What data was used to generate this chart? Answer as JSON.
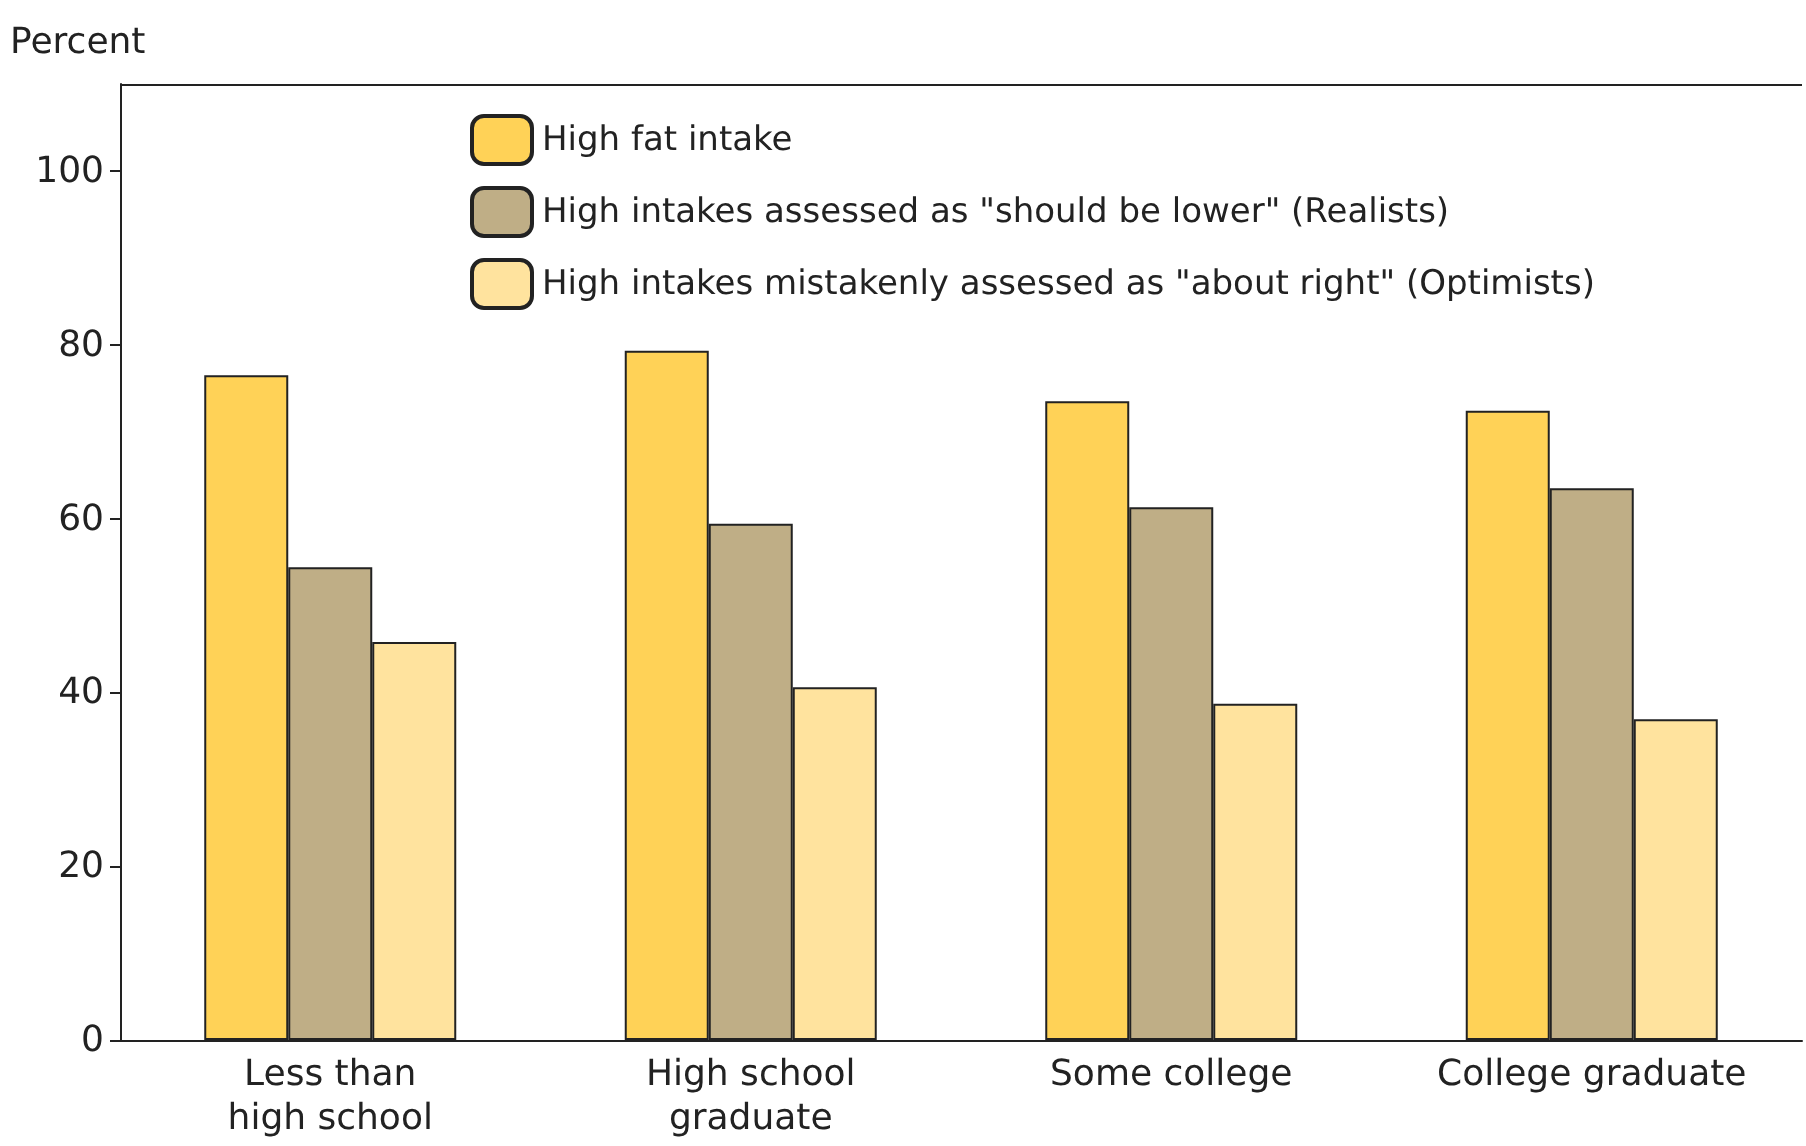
{
  "chart_data": {
    "type": "bar",
    "ylabel": "Percent",
    "categories": [
      "Less than\nhigh school",
      "High school\ngraduate",
      "Some college",
      "College graduate"
    ],
    "series": [
      {
        "name": "High fat intake",
        "color": "#ffd257",
        "values": [
          76.5,
          79.3,
          73.5,
          72.4
        ]
      },
      {
        "name": "High intakes assessed as \"should be lower\" (Realists)",
        "color": "#bfae86",
        "values": [
          54.4,
          59.4,
          61.3,
          63.5
        ]
      },
      {
        "name": "High intakes mistakenly assessed as \"about right\" (Optimists)",
        "color": "#ffe39e",
        "values": [
          45.8,
          40.6,
          38.7,
          36.9
        ]
      }
    ],
    "ylim": [
      0,
      110
    ],
    "yticks": [
      0,
      20,
      40,
      60,
      80,
      100
    ],
    "grid": false,
    "legend": "top"
  }
}
